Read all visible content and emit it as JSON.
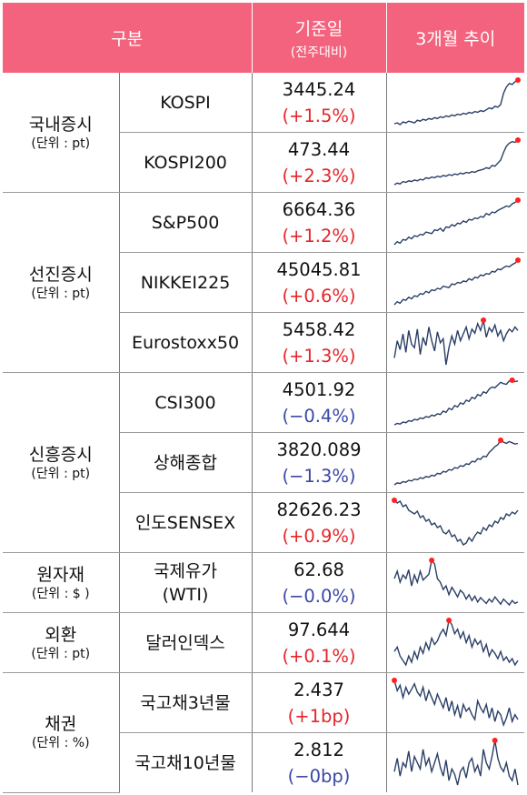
{
  "header": {
    "category": "구분",
    "base_date": "기준일",
    "base_date_sub": "(전주대비)",
    "trend": "3개월 추이"
  },
  "groups": [
    {
      "name": "국내증시",
      "unit": "(단위 : pt)"
    },
    {
      "name": "선진증시",
      "unit": "(단위 : pt)"
    },
    {
      "name": "신흥증시",
      "unit": "(단위 : pt)"
    },
    {
      "name": "원자재",
      "unit": "(단위 : $ )"
    },
    {
      "name": "외환",
      "unit": "(단위 : pt)"
    },
    {
      "name": "채권",
      "unit": "(단위 : %)"
    }
  ],
  "rows": [
    {
      "name": "KOSPI",
      "value": "3445.24",
      "change": "(+1.5%)",
      "direction": "up",
      "spark": [
        40,
        41,
        39,
        42,
        41,
        43,
        42,
        41,
        44,
        43,
        45,
        44,
        46,
        45,
        47,
        46,
        48,
        47,
        49,
        48,
        50,
        49,
        51,
        50,
        52,
        51,
        53,
        52,
        54,
        53,
        55,
        54,
        56,
        58,
        57,
        60,
        59,
        62,
        75,
        82,
        86,
        85,
        88,
        90
      ]
    },
    {
      "name": "KOSPI200",
      "value": "473.44",
      "change": "(+2.3%)",
      "direction": "up",
      "spark": [
        30,
        32,
        31,
        34,
        33,
        35,
        34,
        36,
        35,
        37,
        36,
        39,
        38,
        40,
        39,
        41,
        40,
        42,
        41,
        43,
        42,
        44,
        43,
        45,
        44,
        46,
        45,
        47,
        46,
        48,
        49,
        50,
        52,
        51,
        55,
        54,
        58,
        62,
        72,
        80,
        84,
        86,
        85,
        88
      ]
    },
    {
      "name": "S&P500",
      "value": "6664.36",
      "change": "(+1.2%)",
      "direction": "up",
      "spark": [
        28,
        32,
        30,
        35,
        34,
        38,
        36,
        40,
        39,
        42,
        41,
        45,
        44,
        43,
        48,
        47,
        50,
        46,
        52,
        51,
        55,
        53,
        57,
        56,
        60,
        58,
        62,
        61,
        64,
        63,
        66,
        65,
        70,
        68,
        72,
        71,
        74,
        76,
        78,
        80,
        79,
        83,
        85,
        88
      ]
    },
    {
      "name": "NIKKEI225",
      "value": "45045.81",
      "change": "(+0.6%)",
      "direction": "up",
      "spark": [
        20,
        24,
        22,
        27,
        26,
        30,
        28,
        32,
        31,
        35,
        34,
        38,
        36,
        40,
        39,
        42,
        41,
        45,
        44,
        43,
        48,
        47,
        50,
        49,
        52,
        51,
        55,
        53,
        57,
        56,
        60,
        59,
        62,
        61,
        65,
        64,
        68,
        67,
        70,
        72,
        71,
        74,
        76,
        80
      ]
    },
    {
      "name": "Eurostoxx50",
      "value": "5458.42",
      "change": "(+1.3%)",
      "direction": "up",
      "spark": [
        30,
        55,
        42,
        65,
        38,
        70,
        50,
        45,
        72,
        35,
        60,
        48,
        75,
        55,
        40,
        68,
        52,
        58,
        20,
        45,
        62,
        50,
        70,
        55,
        65,
        75,
        58,
        72,
        66,
        80,
        70,
        85,
        60,
        74,
        68,
        78,
        62,
        70,
        55,
        65,
        72,
        68,
        75,
        70
      ]
    },
    {
      "name": "CSI300",
      "value": "4501.92",
      "change": "(−0.4%)",
      "direction": "down",
      "spark": [
        20,
        22,
        21,
        24,
        23,
        26,
        25,
        28,
        27,
        30,
        29,
        32,
        31,
        34,
        33,
        36,
        35,
        40,
        38,
        44,
        42,
        48,
        46,
        52,
        50,
        56,
        54,
        60,
        58,
        64,
        62,
        68,
        66,
        72,
        75,
        74,
        78,
        82,
        80,
        79,
        84,
        85,
        83,
        84
      ]
    },
    {
      "name": "상해종합",
      "value": "3820.089",
      "change": "(−1.3%)",
      "direction": "down",
      "spark": [
        15,
        18,
        17,
        20,
        19,
        22,
        21,
        24,
        23,
        26,
        25,
        28,
        27,
        30,
        29,
        33,
        32,
        36,
        35,
        39,
        38,
        42,
        41,
        45,
        44,
        48,
        47,
        52,
        51,
        56,
        55,
        60,
        59,
        66,
        70,
        75,
        78,
        85,
        82,
        80,
        83,
        81,
        79,
        80
      ]
    },
    {
      "name": "인도SENSEX",
      "value": "82626.23",
      "change": "(+0.9%)",
      "direction": "up",
      "spark": [
        85,
        82,
        84,
        78,
        80,
        74,
        72,
        70,
        73,
        66,
        68,
        62,
        64,
        58,
        60,
        55,
        57,
        50,
        48,
        52,
        45,
        47,
        40,
        42,
        36,
        38,
        44,
        40,
        46,
        50,
        48,
        55,
        52,
        58,
        56,
        62,
        60,
        66,
        64,
        70,
        68,
        72,
        70,
        74
      ]
    },
    {
      "name": "국제유가\n(WTI)",
      "value": "62.68",
      "change": "(−0.0%)",
      "direction": "down",
      "spark": [
        60,
        70,
        55,
        65,
        60,
        72,
        50,
        65,
        55,
        70,
        58,
        62,
        66,
        85,
        80,
        60,
        55,
        45,
        50,
        38,
        48,
        42,
        35,
        44,
        40,
        32,
        38,
        30,
        36,
        28,
        34,
        30,
        26,
        32,
        28,
        35,
        30,
        25,
        32,
        28,
        24,
        30,
        26,
        28
      ]
    },
    {
      "name": "달러인덱스",
      "value": "97.644",
      "change": "(+0.1%)",
      "direction": "up",
      "spark": [
        50,
        55,
        45,
        40,
        35,
        45,
        38,
        50,
        42,
        55,
        48,
        60,
        52,
        65,
        58,
        62,
        70,
        75,
        68,
        85,
        80,
        70,
        75,
        65,
        72,
        60,
        68,
        55,
        64,
        58,
        62,
        50,
        58,
        45,
        52,
        48,
        42,
        50,
        40,
        44,
        38,
        42,
        35,
        40
      ]
    },
    {
      "name": "국고채3년물",
      "value": "2.437",
      "change": "(+1bp)",
      "direction": "up",
      "spark": [
        85,
        70,
        78,
        60,
        75,
        65,
        72,
        80,
        68,
        62,
        75,
        55,
        70,
        60,
        50,
        65,
        55,
        45,
        60,
        40,
        55,
        35,
        48,
        30,
        50,
        40,
        45,
        35,
        28,
        55,
        45,
        38,
        50,
        30,
        45,
        25,
        40,
        35,
        20,
        30,
        45,
        25,
        35,
        28
      ]
    },
    {
      "name": "국고채10년물",
      "value": "2.812",
      "change": "(−0bp)",
      "direction": "down",
      "spark": [
        45,
        60,
        40,
        55,
        50,
        68,
        45,
        62,
        55,
        48,
        70,
        52,
        60,
        45,
        55,
        65,
        50,
        40,
        58,
        35,
        48,
        42,
        30,
        45,
        50,
        38,
        55,
        60,
        45,
        52,
        40,
        70,
        55,
        48,
        62,
        80,
        60,
        50,
        45,
        55,
        40,
        35,
        48,
        30
      ]
    }
  ],
  "colors": {
    "header_bg": "#f4637d",
    "up": "#e4262a",
    "down": "#3b47a6",
    "spark_line": "#2a3f66",
    "spark_marker": "#ff2020"
  }
}
